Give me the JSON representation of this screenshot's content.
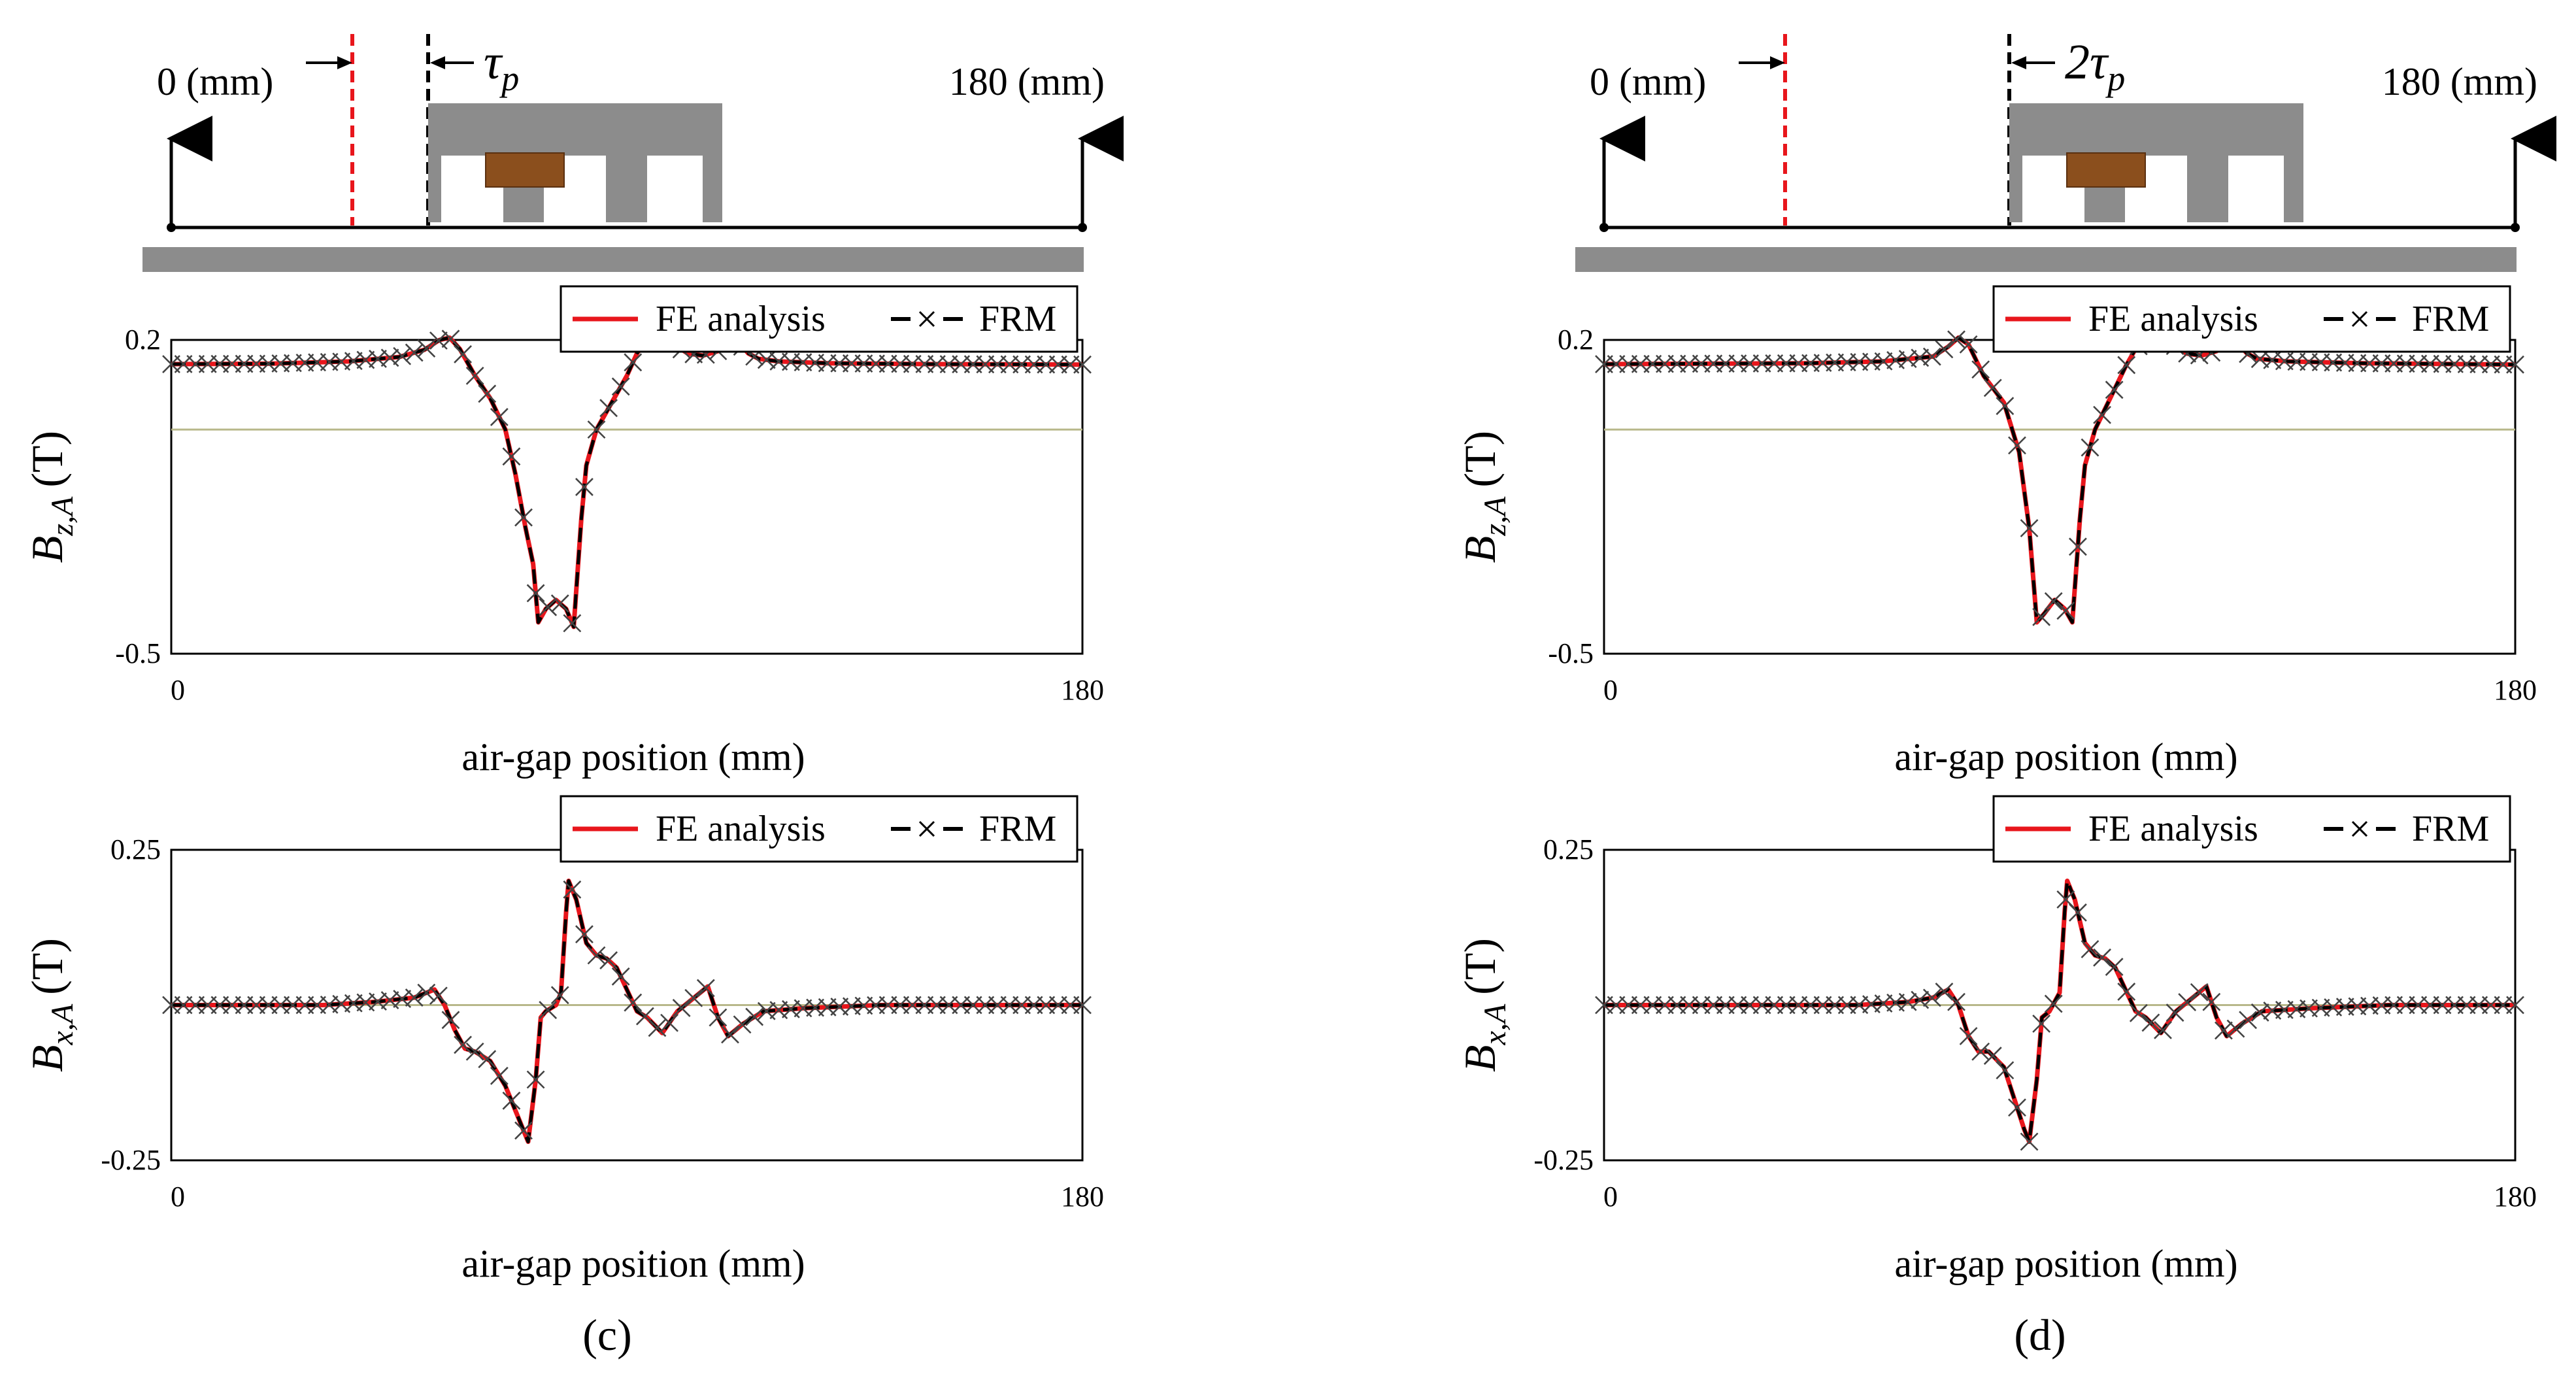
{
  "figure": {
    "panels": [
      {
        "label": "(c)",
        "schematic": {
          "left_label": "0 (mm)",
          "right_label": "180 (mm)",
          "shift_label": "τ",
          "shift_sub": "p",
          "shift_factor": 1,
          "colors": {
            "red_dashed": "#e8161c",
            "core": "#8c8c8c",
            "coil": "#8b4f1d",
            "rail": "#8c8c8c"
          }
        },
        "charts": [
          {
            "ylabel_base": "B",
            "ylabel_sub": "z,A",
            "ylabel_unit": "(T)",
            "yticks": [
              "0.2",
              "-0.5"
            ],
            "xticks": [
              "0",
              "180"
            ],
            "xlabel": "air-gap position (mm)",
            "legend": [
              "FE analysis",
              "FRM"
            ]
          },
          {
            "ylabel_base": "B",
            "ylabel_sub": "x,A",
            "ylabel_unit": "(T)",
            "yticks": [
              "0.25",
              "-0.25"
            ],
            "xticks": [
              "0",
              "180"
            ],
            "xlabel": "air-gap position (mm)",
            "legend": [
              "FE analysis",
              "FRM"
            ]
          }
        ]
      },
      {
        "label": "(d)",
        "schematic": {
          "left_label": "0 (mm)",
          "right_label": "180 (mm)",
          "shift_label": "2τ",
          "shift_sub": "p",
          "shift_factor": 2,
          "colors": {
            "red_dashed": "#e8161c",
            "core": "#8c8c8c",
            "coil": "#8b4f1d",
            "rail": "#8c8c8c"
          }
        },
        "charts": [
          {
            "ylabel_base": "B",
            "ylabel_sub": "z,A",
            "ylabel_unit": "(T)",
            "yticks": [
              "0.2",
              "-0.5"
            ],
            "xticks": [
              "0",
              "180"
            ],
            "xlabel": "air-gap position (mm)",
            "legend": [
              "FE analysis",
              "FRM"
            ]
          },
          {
            "ylabel_base": "B",
            "ylabel_sub": "x,A",
            "ylabel_unit": "(T)",
            "yticks": [
              "0.25",
              "-0.25"
            ],
            "xticks": [
              "0",
              "180"
            ],
            "xlabel": "air-gap position (mm)",
            "legend": [
              "FE analysis",
              "FRM"
            ]
          }
        ]
      }
    ]
  },
  "chart_data": [
    {
      "type": "line",
      "panel": "(c)",
      "title": "",
      "xlabel": "air-gap position (mm)",
      "ylabel": "B_z,A (T)",
      "xlim": [
        0,
        180
      ],
      "ylim": [
        -0.5,
        0.2
      ],
      "yticks": [
        0.2,
        -0.5
      ],
      "xticks": [
        0,
        180
      ],
      "legend_position": "top-right",
      "colors": {
        "fe": "#e8161c",
        "frm": "#000000",
        "markers": "#444444",
        "zero": "#b8b88a"
      },
      "series": [
        {
          "name": "FE analysis",
          "style": "solid-red"
        },
        {
          "name": "FRM",
          "style": "dashed-black-x"
        }
      ],
      "curve": [
        [
          0,
          0.146
        ],
        [
          20,
          0.147
        ],
        [
          35,
          0.152
        ],
        [
          45,
          0.162
        ],
        [
          50,
          0.178
        ],
        [
          53,
          0.2
        ],
        [
          55,
          0.205
        ],
        [
          57,
          0.18
        ],
        [
          60,
          0.12
        ],
        [
          63,
          0.07
        ],
        [
          66,
          0.0
        ],
        [
          68,
          -0.1
        ],
        [
          70,
          -0.22
        ],
        [
          71.5,
          -0.3
        ],
        [
          72.5,
          -0.43
        ],
        [
          74,
          -0.4
        ],
        [
          76,
          -0.38
        ],
        [
          78,
          -0.4
        ],
        [
          79.5,
          -0.44
        ],
        [
          81,
          -0.2
        ],
        [
          82,
          -0.08
        ],
        [
          84,
          0.0
        ],
        [
          87,
          0.06
        ],
        [
          90,
          0.12
        ],
        [
          92,
          0.17
        ],
        [
          94,
          0.2
        ],
        [
          96,
          0.195
        ],
        [
          98,
          0.2
        ],
        [
          100,
          0.185
        ],
        [
          102,
          0.17
        ],
        [
          105,
          0.165
        ],
        [
          108,
          0.175
        ],
        [
          110,
          0.2
        ],
        [
          112,
          0.195
        ],
        [
          114,
          0.17
        ],
        [
          116,
          0.158
        ],
        [
          120,
          0.152
        ],
        [
          130,
          0.148
        ],
        [
          150,
          0.146
        ],
        [
          180,
          0.145
        ]
      ]
    },
    {
      "type": "line",
      "panel": "(c)",
      "title": "",
      "xlabel": "air-gap position (mm)",
      "ylabel": "B_x,A (T)",
      "xlim": [
        0,
        180
      ],
      "ylim": [
        -0.25,
        0.25
      ],
      "yticks": [
        0.25,
        -0.25
      ],
      "xticks": [
        0,
        180
      ],
      "legend_position": "top-right",
      "colors": {
        "fe": "#e8161c",
        "frm": "#000000",
        "markers": "#444444",
        "zero": "#b8b88a"
      },
      "series": [
        {
          "name": "FE analysis",
          "style": "solid-red"
        },
        {
          "name": "FRM",
          "style": "dashed-black-x"
        }
      ],
      "curve": [
        [
          0,
          0.0
        ],
        [
          30,
          0.0
        ],
        [
          40,
          0.005
        ],
        [
          48,
          0.012
        ],
        [
          52,
          0.025
        ],
        [
          54,
          0.0
        ],
        [
          56,
          -0.04
        ],
        [
          58,
          -0.07
        ],
        [
          60,
          -0.075
        ],
        [
          63,
          -0.09
        ],
        [
          66,
          -0.13
        ],
        [
          68,
          -0.17
        ],
        [
          69.5,
          -0.2
        ],
        [
          70.5,
          -0.22
        ],
        [
          72,
          -0.12
        ],
        [
          73,
          -0.02
        ],
        [
          74,
          -0.01
        ],
        [
          76,
          0.0
        ],
        [
          77,
          0.02
        ],
        [
          78,
          0.15
        ],
        [
          78.5,
          0.2
        ],
        [
          80,
          0.17
        ],
        [
          82,
          0.1
        ],
        [
          84,
          0.08
        ],
        [
          86,
          0.075
        ],
        [
          88,
          0.06
        ],
        [
          90,
          0.025
        ],
        [
          92,
          -0.01
        ],
        [
          94,
          -0.02
        ],
        [
          97,
          -0.045
        ],
        [
          100,
          -0.01
        ],
        [
          103,
          0.01
        ],
        [
          106,
          0.03
        ],
        [
          108,
          -0.02
        ],
        [
          110,
          -0.05
        ],
        [
          113,
          -0.03
        ],
        [
          117,
          -0.01
        ],
        [
          125,
          -0.005
        ],
        [
          140,
          0.0
        ],
        [
          180,
          0.0
        ]
      ]
    },
    {
      "type": "line",
      "panel": "(d)",
      "title": "",
      "xlabel": "air-gap position (mm)",
      "ylabel": "B_z,A (T)",
      "xlim": [
        0,
        180
      ],
      "ylim": [
        -0.5,
        0.2
      ],
      "yticks": [
        0.2,
        -0.5
      ],
      "xticks": [
        0,
        180
      ],
      "legend_position": "top-right",
      "colors": {
        "fe": "#e8161c",
        "frm": "#000000",
        "markers": "#444444",
        "zero": "#b8b88a"
      },
      "series": [
        {
          "name": "FE analysis",
          "style": "solid-red"
        },
        {
          "name": "FRM",
          "style": "dashed-black-x"
        }
      ],
      "curve": [
        [
          0,
          0.146
        ],
        [
          40,
          0.148
        ],
        [
          55,
          0.152
        ],
        [
          65,
          0.163
        ],
        [
          68,
          0.185
        ],
        [
          70,
          0.205
        ],
        [
          72,
          0.19
        ],
        [
          75,
          0.12
        ],
        [
          79,
          0.06
        ],
        [
          82,
          -0.05
        ],
        [
          84,
          -0.22
        ],
        [
          85.5,
          -0.43
        ],
        [
          87,
          -0.41
        ],
        [
          89,
          -0.38
        ],
        [
          91,
          -0.4
        ],
        [
          92.5,
          -0.43
        ],
        [
          94,
          -0.2
        ],
        [
          95,
          -0.08
        ],
        [
          97,
          0.0
        ],
        [
          100,
          0.07
        ],
        [
          103,
          0.14
        ],
        [
          105,
          0.18
        ],
        [
          107,
          0.2
        ],
        [
          109,
          0.195
        ],
        [
          111,
          0.2
        ],
        [
          113,
          0.185
        ],
        [
          115,
          0.17
        ],
        [
          118,
          0.165
        ],
        [
          121,
          0.175
        ],
        [
          123,
          0.2
        ],
        [
          125,
          0.195
        ],
        [
          127,
          0.17
        ],
        [
          129,
          0.158
        ],
        [
          135,
          0.152
        ],
        [
          150,
          0.148
        ],
        [
          180,
          0.145
        ]
      ]
    },
    {
      "type": "line",
      "panel": "(d)",
      "title": "",
      "xlabel": "air-gap position (mm)",
      "ylabel": "B_x,A (T)",
      "xlim": [
        0,
        180
      ],
      "ylim": [
        -0.25,
        0.25
      ],
      "yticks": [
        0.25,
        -0.25
      ],
      "xticks": [
        0,
        180
      ],
      "legend_position": "top-right",
      "colors": {
        "fe": "#e8161c",
        "frm": "#000000",
        "markers": "#444444",
        "zero": "#b8b88a"
      },
      "series": [
        {
          "name": "FE analysis",
          "style": "solid-red"
        },
        {
          "name": "FRM",
          "style": "dashed-black-x"
        }
      ],
      "curve": [
        [
          0,
          0.0
        ],
        [
          50,
          0.0
        ],
        [
          60,
          0.005
        ],
        [
          65,
          0.012
        ],
        [
          68,
          0.025
        ],
        [
          70,
          0.0
        ],
        [
          72,
          -0.05
        ],
        [
          74,
          -0.075
        ],
        [
          76,
          -0.075
        ],
        [
          79,
          -0.1
        ],
        [
          81,
          -0.15
        ],
        [
          83,
          -0.2
        ],
        [
          84,
          -0.22
        ],
        [
          85.5,
          -0.12
        ],
        [
          86.5,
          -0.02
        ],
        [
          88,
          -0.01
        ],
        [
          90,
          0.02
        ],
        [
          91,
          0.15
        ],
        [
          91.5,
          0.2
        ],
        [
          93,
          0.17
        ],
        [
          95,
          0.1
        ],
        [
          97,
          0.08
        ],
        [
          99,
          0.075
        ],
        [
          101,
          0.06
        ],
        [
          103,
          0.025
        ],
        [
          105,
          -0.01
        ],
        [
          107,
          -0.02
        ],
        [
          110,
          -0.045
        ],
        [
          113,
          -0.01
        ],
        [
          116,
          0.01
        ],
        [
          119,
          0.03
        ],
        [
          121,
          -0.02
        ],
        [
          123,
          -0.05
        ],
        [
          126,
          -0.03
        ],
        [
          130,
          -0.01
        ],
        [
          140,
          -0.005
        ],
        [
          155,
          0.0
        ],
        [
          180,
          0.0
        ]
      ]
    }
  ]
}
